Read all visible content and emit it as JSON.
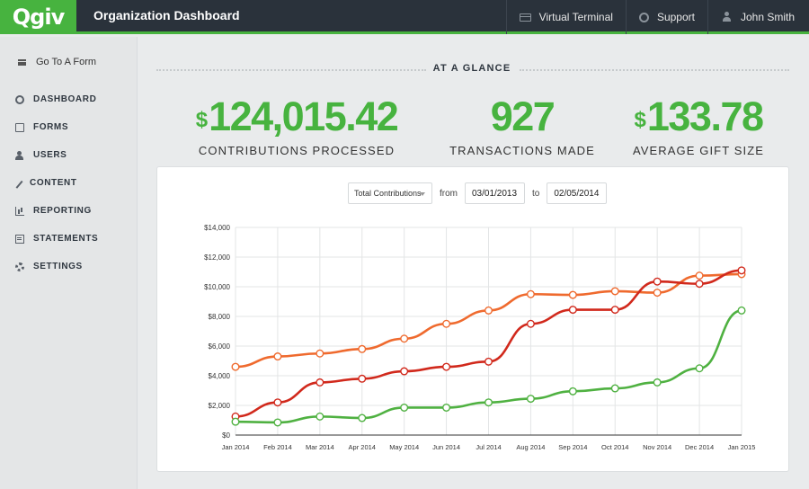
{
  "header": {
    "logo": "Qgiv",
    "title": "Organization Dashboard",
    "nav": [
      {
        "label": "Virtual Terminal",
        "icon": "terminal-icon"
      },
      {
        "label": "Support",
        "icon": "support-icon"
      },
      {
        "label": "John Smith",
        "icon": "user-icon"
      }
    ]
  },
  "sidebar": {
    "goto_label": "Go To A Form",
    "items": [
      {
        "label": "DASHBOARD",
        "icon": "dashboard-icon"
      },
      {
        "label": "FORMS",
        "icon": "forms-icon"
      },
      {
        "label": "USERS",
        "icon": "users-icon"
      },
      {
        "label": "CONTENT",
        "icon": "pencil-icon"
      },
      {
        "label": "REPORTING",
        "icon": "bar-chart-icon"
      },
      {
        "label": "STATEMENTS",
        "icon": "statement-icon"
      },
      {
        "label": "SETTINGS",
        "icon": "gear-icon"
      }
    ]
  },
  "glance": {
    "title": "AT A GLANCE",
    "stats": [
      {
        "currency": "$",
        "value": "124,015.42",
        "label": "CONTRIBUTIONS PROCESSED"
      },
      {
        "currency": "",
        "value": "927",
        "label": "TRANSACTIONS MADE"
      },
      {
        "currency": "$",
        "value": "133.78",
        "label": "AVERAGE GIFT SIZE"
      }
    ]
  },
  "filters": {
    "metric": "Total Contributions",
    "from_label": "from",
    "from_date": "03/01/2013",
    "to_label": "to",
    "to_date": "02/05/2014"
  },
  "colors": {
    "brand_green": "#47b33f",
    "series_orange": "#ef6a2e",
    "series_red": "#d1291c",
    "series_green": "#4fb141"
  },
  "chart_data": {
    "type": "line",
    "categories": [
      "Jan 2014",
      "Feb 2014",
      "Mar 2014",
      "Apr 2014",
      "May 2014",
      "Jun 2014",
      "Jul 2014",
      "Aug 2014",
      "Sep 2014",
      "Oct 2014",
      "Nov 2014",
      "Dec 2014",
      "Jan 2015"
    ],
    "ylim": [
      0,
      14000
    ],
    "yticks": [
      0,
      2000,
      4000,
      6000,
      8000,
      10000,
      12000,
      14000
    ],
    "ytick_labels": [
      "$0",
      "$2,000",
      "$4,000",
      "$6,000",
      "$8,000",
      "$10,000",
      "$12,000",
      "$14,000"
    ],
    "grid": true,
    "series": [
      {
        "color": "#ef6a2e",
        "values": [
          4600,
          5300,
          5500,
          5800,
          6500,
          7500,
          8400,
          9500,
          9450,
          9700,
          9600,
          10750,
          10850
        ]
      },
      {
        "color": "#d1291c",
        "values": [
          1250,
          2200,
          3550,
          3800,
          4300,
          4600,
          4950,
          7500,
          8450,
          8450,
          10350,
          10200,
          11100
        ]
      },
      {
        "color": "#4fb141",
        "values": [
          900,
          850,
          1250,
          1150,
          1850,
          1850,
          2200,
          2450,
          2950,
          3150,
          3550,
          4500,
          8400
        ]
      }
    ]
  }
}
